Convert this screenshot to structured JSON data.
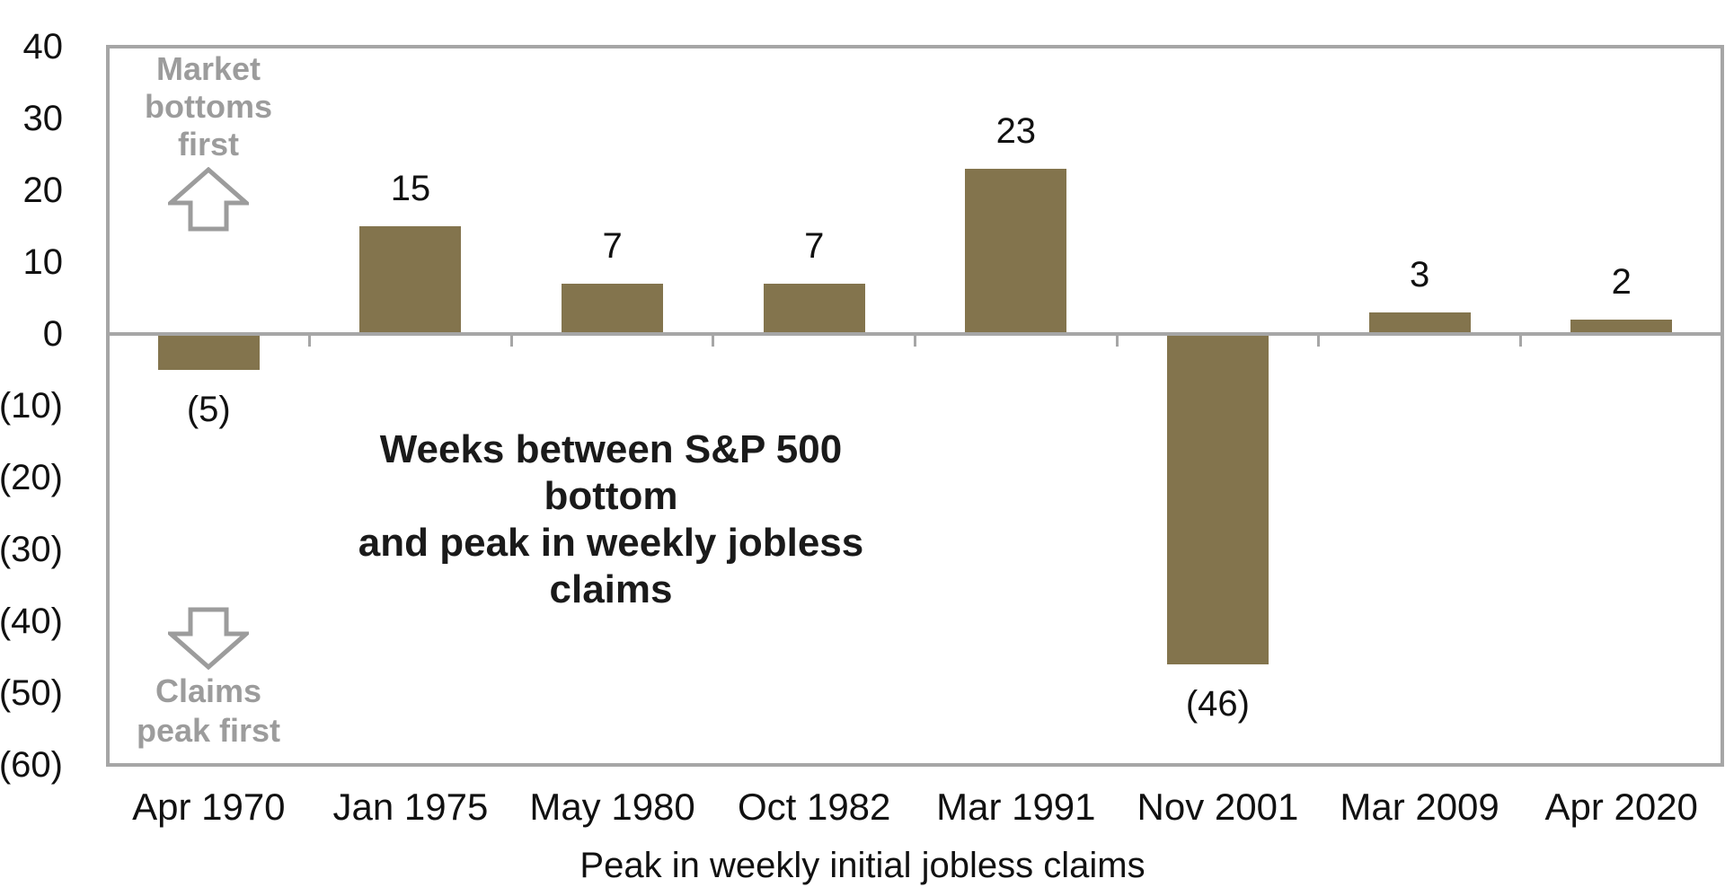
{
  "chart_data": {
    "type": "bar",
    "categories": [
      "Apr 1970",
      "Jan 1975",
      "May 1980",
      "Oct 1982",
      "Mar 1991",
      "Nov 2001",
      "Mar 2009",
      "Apr 2020"
    ],
    "values": [
      -5,
      15,
      7,
      7,
      23,
      -46,
      3,
      2
    ],
    "value_labels": [
      "(5)",
      "15",
      "7",
      "7",
      "23",
      "(46)",
      "3",
      "2"
    ],
    "xlabel": "Peak in weekly initial jobless claims",
    "ylabel": "",
    "ylim": [
      -60,
      40
    ],
    "ytick_values": [
      40,
      30,
      20,
      10,
      0,
      -10,
      -20,
      -30,
      -40,
      -50,
      -60
    ],
    "ytick_labels": [
      "40",
      "30",
      "20",
      "10",
      "0",
      "(10)",
      "(20)",
      "(30)",
      "(40)",
      "(50)",
      "(60)"
    ],
    "grid": "off",
    "legend": "none",
    "negative_label_format": "parentheses",
    "bar_color": "#83744D",
    "axis_color": "#A6A6A6",
    "annotation_color": "#9C9C9C",
    "subtitle_annotation": "Weeks between S&P 500  bottom\nand peak in weekly jobless claims",
    "upper_annotation": "Market\nbottoms\nfirst",
    "lower_annotation": "Claims\npeak first"
  }
}
